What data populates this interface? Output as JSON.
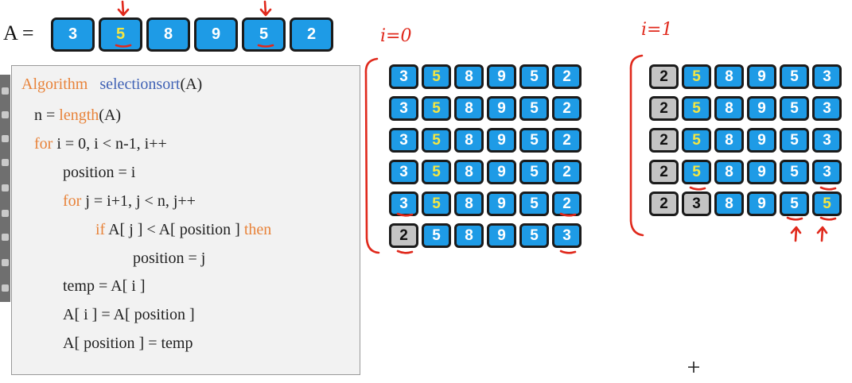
{
  "array_label": "A =",
  "main_array": [
    {
      "value": "3",
      "highlight": false
    },
    {
      "value": "5",
      "highlight": true
    },
    {
      "value": "8",
      "highlight": false
    },
    {
      "value": "9",
      "highlight": false
    },
    {
      "value": "5",
      "highlight": false
    },
    {
      "value": "2",
      "highlight": false
    }
  ],
  "algorithm": {
    "line1": {
      "kw": "Algorithm",
      "fn": "selectionsort",
      "rest": "(A)"
    },
    "line2": {
      "pre": "n = ",
      "kw": "length",
      "rest": "(A)"
    },
    "line3": {
      "kw": "for",
      "rest": " i = 0, i < n-1, i++"
    },
    "line4": {
      "text": "position = i"
    },
    "line5": {
      "kw": "for",
      "rest": " j = i+1, j < n, j++"
    },
    "line6": {
      "kw": "if",
      "mid": " A[ j ] < A[ position ] ",
      "kw2": "then"
    },
    "line7": {
      "text": "position = j"
    },
    "line8": {
      "text": "temp = A[ i ]"
    },
    "line9": {
      "text": "A[ i ] = A[ position ]"
    },
    "line10": {
      "text": "A[ position ] = temp"
    }
  },
  "pass0": {
    "label": "i=0",
    "rows": [
      [
        {
          "v": "3",
          "s": "n"
        },
        {
          "v": "5",
          "s": "h"
        },
        {
          "v": "8",
          "s": "n"
        },
        {
          "v": "9",
          "s": "n"
        },
        {
          "v": "5",
          "s": "n"
        },
        {
          "v": "2",
          "s": "n"
        }
      ],
      [
        {
          "v": "3",
          "s": "n"
        },
        {
          "v": "5",
          "s": "h"
        },
        {
          "v": "8",
          "s": "n"
        },
        {
          "v": "9",
          "s": "n"
        },
        {
          "v": "5",
          "s": "n"
        },
        {
          "v": "2",
          "s": "n"
        }
      ],
      [
        {
          "v": "3",
          "s": "n"
        },
        {
          "v": "5",
          "s": "h"
        },
        {
          "v": "8",
          "s": "n"
        },
        {
          "v": "9",
          "s": "n"
        },
        {
          "v": "5",
          "s": "n"
        },
        {
          "v": "2",
          "s": "n"
        }
      ],
      [
        {
          "v": "3",
          "s": "n"
        },
        {
          "v": "5",
          "s": "h"
        },
        {
          "v": "8",
          "s": "n"
        },
        {
          "v": "9",
          "s": "n"
        },
        {
          "v": "5",
          "s": "n"
        },
        {
          "v": "2",
          "s": "n"
        }
      ],
      [
        {
          "v": "3",
          "s": "n"
        },
        {
          "v": "5",
          "s": "h"
        },
        {
          "v": "8",
          "s": "n"
        },
        {
          "v": "9",
          "s": "n"
        },
        {
          "v": "5",
          "s": "n"
        },
        {
          "v": "2",
          "s": "n"
        }
      ],
      [
        {
          "v": "2",
          "s": "g"
        },
        {
          "v": "5",
          "s": "n"
        },
        {
          "v": "8",
          "s": "n"
        },
        {
          "v": "9",
          "s": "n"
        },
        {
          "v": "5",
          "s": "n"
        },
        {
          "v": "3",
          "s": "n"
        }
      ]
    ]
  },
  "pass1": {
    "label": "i=1",
    "rows": [
      [
        {
          "v": "2",
          "s": "g"
        },
        {
          "v": "5",
          "s": "h"
        },
        {
          "v": "8",
          "s": "n"
        },
        {
          "v": "9",
          "s": "n"
        },
        {
          "v": "5",
          "s": "n"
        },
        {
          "v": "3",
          "s": "n"
        }
      ],
      [
        {
          "v": "2",
          "s": "g"
        },
        {
          "v": "5",
          "s": "h"
        },
        {
          "v": "8",
          "s": "n"
        },
        {
          "v": "9",
          "s": "n"
        },
        {
          "v": "5",
          "s": "n"
        },
        {
          "v": "3",
          "s": "n"
        }
      ],
      [
        {
          "v": "2",
          "s": "g"
        },
        {
          "v": "5",
          "s": "h"
        },
        {
          "v": "8",
          "s": "n"
        },
        {
          "v": "9",
          "s": "n"
        },
        {
          "v": "5",
          "s": "n"
        },
        {
          "v": "3",
          "s": "n"
        }
      ],
      [
        {
          "v": "2",
          "s": "g"
        },
        {
          "v": "5",
          "s": "h"
        },
        {
          "v": "8",
          "s": "n"
        },
        {
          "v": "9",
          "s": "n"
        },
        {
          "v": "5",
          "s": "n"
        },
        {
          "v": "3",
          "s": "n"
        }
      ],
      [
        {
          "v": "2",
          "s": "g"
        },
        {
          "v": "3",
          "s": "g"
        },
        {
          "v": "8",
          "s": "n"
        },
        {
          "v": "9",
          "s": "n"
        },
        {
          "v": "5",
          "s": "n"
        },
        {
          "v": "5",
          "s": "h"
        }
      ]
    ]
  },
  "colors": {
    "cell": "#1e9be6",
    "highlight_text": "#f4e642",
    "sorted_cell": "#c4c4c4",
    "annotation": "#e0291c",
    "keyword": "#e8833a",
    "function": "#4062b5"
  },
  "icons": [
    "pen-tool-icon",
    "eraser-icon",
    "pencil-icon",
    "highlighter-icon",
    "pointer-icon",
    "line-icon",
    "shape-icon",
    "screen-icon",
    "settings-icon"
  ]
}
